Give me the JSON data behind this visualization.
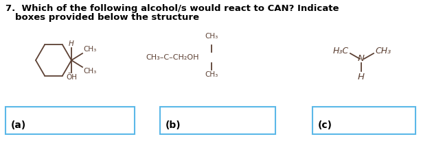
{
  "yes_color": "#4169E1",
  "no_color": "#4169CD",
  "text_color": "#000000",
  "box_edge_color": "#5BB8E8",
  "background_color": "#ffffff",
  "molecule_color": "#5C4033",
  "label_color": "#000000",
  "font_size_title": 9.5,
  "font_size_mol": 7.5,
  "font_size_label": 10,
  "label_a": "(a)",
  "label_b": "(b)",
  "label_c": "(c)"
}
